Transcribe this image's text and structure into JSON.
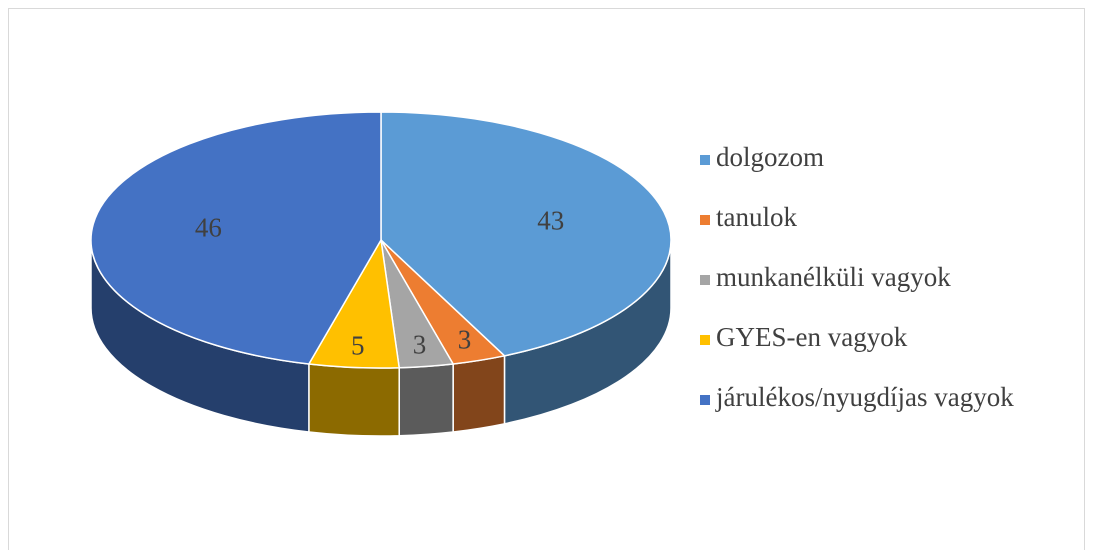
{
  "chart_data": {
    "type": "pie",
    "categories": [
      "dolgozom",
      "tanulok",
      "munkanélküli vagyok",
      "GYES-en vagyok",
      "járulékos/nyugdíjas vagyok"
    ],
    "values": [
      43,
      3,
      3,
      5,
      46
    ],
    "colors": [
      "#5b9bd5",
      "#ed7d31",
      "#a5a5a5",
      "#ffc000",
      "#4472c4"
    ],
    "legend": "right"
  }
}
